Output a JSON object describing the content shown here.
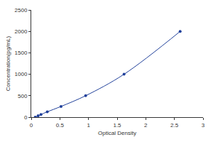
{
  "chart_data": {
    "type": "line",
    "xlabel": "Optical Density",
    "ylabel": "Concentration(pg/mL)",
    "x": [
      0.07,
      0.12,
      0.17,
      0.28,
      0.52,
      0.95,
      1.62,
      2.6
    ],
    "values": [
      0,
      31.25,
      62.5,
      125,
      250,
      500,
      1000,
      2000
    ],
    "color": "#1f3f9a",
    "marker": "circle",
    "line_style": "solid",
    "xlim": [
      0,
      3
    ],
    "xticks": [
      0,
      0.5,
      1,
      1.5,
      2,
      2.5,
      3
    ],
    "ylim": [
      0,
      2500
    ],
    "yticks": [
      0,
      500,
      1000,
      1500,
      2000,
      2500
    ],
    "grid": false
  }
}
